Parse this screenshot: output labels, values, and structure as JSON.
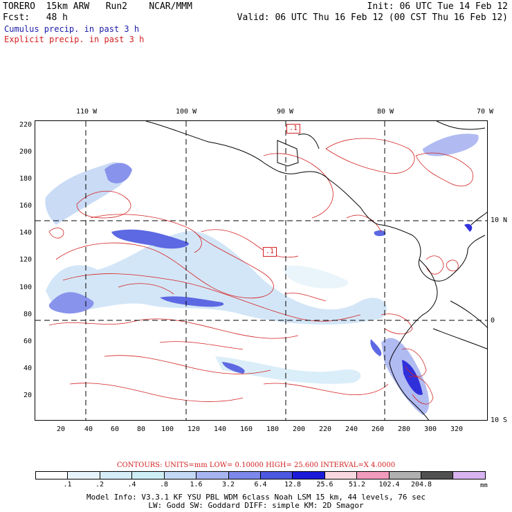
{
  "header": {
    "line1_left": "TORERO  15km ARW   Run2    NCAR/MMM",
    "line1_right": "Init: 06 UTC Tue 14 Feb 12",
    "line2_left": "Fcst:   48 h",
    "line2_right": "Valid: 06 UTC Thu 16 Feb 12 (00 CST Thu 16 Feb 12)",
    "line3": "Cumulus precip. in past 3 h",
    "line4": "Explicit precip. in past 3 h"
  },
  "axes": {
    "top_lon_labels": [
      "110 W",
      "100 W",
      "90 W",
      "80 W",
      "70 W"
    ],
    "left_y_labels": [
      "220",
      "200",
      "180",
      "160",
      "140",
      "120",
      "100",
      "80",
      "60",
      "40",
      "20"
    ],
    "right_lat_labels": [
      "10 N",
      "0",
      "10 S"
    ],
    "bottom_x_labels": [
      "20",
      "40",
      "60",
      "80",
      "100",
      "120",
      "140",
      "160",
      "180",
      "200",
      "220",
      "240",
      "260",
      "280",
      "300",
      "320"
    ]
  },
  "map_labels": {
    "box_label_1": ".1",
    "box_label_2": ".1"
  },
  "contour_caption": "CONTOURS:  UNITS=mm  LOW= 0.10000       HIGH=  25.600      INTERVAL=X  4.0000",
  "colorbar": {
    "colors": [
      "#ffffff",
      "#e8f4fb",
      "#d6ecf8",
      "#cdeef4",
      "#c4d8f5",
      "#a8b4f0",
      "#7c88ea",
      "#4c58e0",
      "#1a1ad8",
      "#f8d8e0",
      "#f09abc",
      "#b0b0b0",
      "#505050",
      "#d8b4f0"
    ],
    "labels": [
      ".1",
      ".2",
      ".4",
      ".8",
      "1.6",
      "3.2",
      "6.4",
      "12.8",
      "25.6",
      "51.2",
      "102.4",
      "204.8"
    ],
    "units": "mm"
  },
  "footer": {
    "model_info_1": "Model Info: V3.3.1   KF     YSU PBL  WDM 6class  Noah LSM  15 km,   44 levels,    76 sec",
    "model_info_2": "LW: Godd SW: Goddard DIFF: simple KM: 2D Smagor"
  }
}
